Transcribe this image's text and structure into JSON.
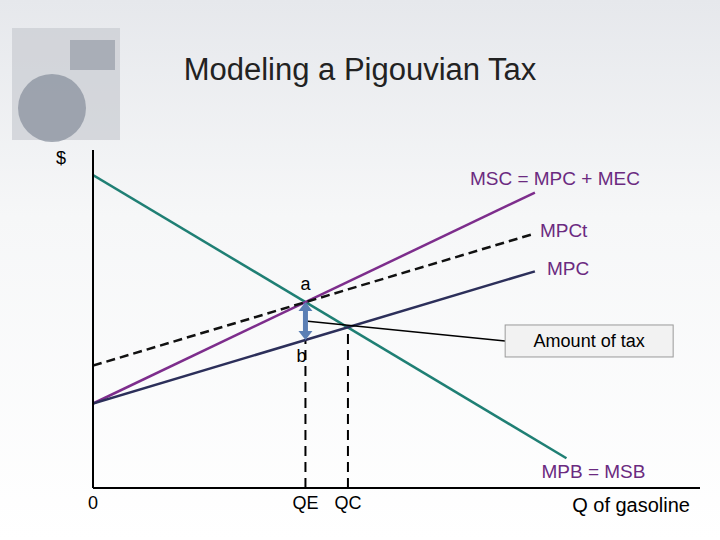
{
  "chart_data": {
    "type": "line",
    "title": "Modeling a Pigouvian Tax",
    "y_label": "$",
    "x_label": "Q of gasoline",
    "xlim": [
      0,
      100
    ],
    "xticks": [
      0,
      {
        "value": 35,
        "label": "QE"
      },
      {
        "value": 42,
        "label": "QC"
      }
    ],
    "ylim": [
      0,
      100
    ],
    "yticks": [],
    "tick_labels": "x",
    "grid": false,
    "series": [
      {
        "name": "MPB = MSB",
        "color": "#1f7f74",
        "line_style": "solid",
        "x": [
          0,
          78
        ],
        "values": [
          92.6,
          8.8
        ]
      },
      {
        "name": "MSC = MPC + MEC",
        "color": "#7d2d8c",
        "line_style": "solid",
        "x": [
          0,
          72.8
        ],
        "values": [
          25,
          87.4
        ]
      },
      {
        "name": "MPCt",
        "color": "#111111",
        "line_style": "dashed",
        "x": [
          0,
          72.8
        ],
        "values": [
          36.2,
          75.3
        ]
      },
      {
        "name": "MPC",
        "color": "#2c2f5a",
        "line_style": "solid",
        "x": [
          0,
          72.8
        ],
        "values": [
          25,
          64.1
        ]
      }
    ],
    "annotations": [
      {
        "text": "a",
        "x": 35,
        "y": 55
      },
      {
        "text": "b",
        "x": 35,
        "y": 43.8
      },
      {
        "text": "Amount of tax",
        "x": 67.9,
        "y": 43.5
      }
    ],
    "drop_lines": [
      {
        "x": 35,
        "y": 43.8
      },
      {
        "x": 42,
        "y": 47.6
      }
    ]
  }
}
